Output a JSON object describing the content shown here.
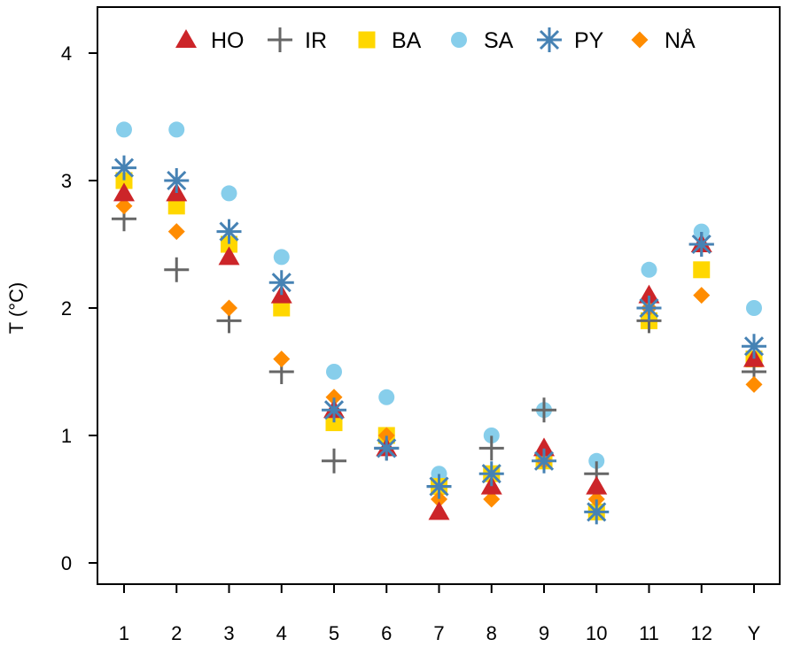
{
  "chart_data": {
    "type": "scatter",
    "title": "",
    "xlabel": "",
    "ylabel": "T (°C)",
    "categories": [
      "1",
      "2",
      "3",
      "4",
      "5",
      "6",
      "7",
      "8",
      "9",
      "10",
      "11",
      "12",
      "Y"
    ],
    "ylim": [
      -0.15,
      4.3
    ],
    "yticks": [
      "0",
      "1",
      "2",
      "3",
      "4"
    ],
    "grid": false,
    "legend_position": "top",
    "series": [
      {
        "name": "HO",
        "marker": "triangle",
        "color": "#CC2529",
        "values": [
          2.9,
          2.9,
          2.4,
          2.1,
          1.2,
          0.9,
          0.4,
          0.6,
          0.9,
          0.6,
          2.1,
          2.5,
          1.6
        ]
      },
      {
        "name": "IR",
        "marker": "plus",
        "color": "#666666",
        "values": [
          2.7,
          2.3,
          1.9,
          1.5,
          0.8,
          0.9,
          0.6,
          0.9,
          1.2,
          0.7,
          1.9,
          2.5,
          1.5
        ]
      },
      {
        "name": "BA",
        "marker": "square",
        "color": "#FFD700",
        "values": [
          3.0,
          2.8,
          2.5,
          2.0,
          1.1,
          1.0,
          0.6,
          0.7,
          0.8,
          0.4,
          1.9,
          2.3,
          1.6
        ]
      },
      {
        "name": "SA",
        "marker": "circle",
        "color": "#87CEEB",
        "values": [
          3.4,
          3.4,
          2.9,
          2.4,
          1.5,
          1.3,
          0.7,
          1.0,
          1.2,
          0.8,
          2.3,
          2.6,
          2.0
        ]
      },
      {
        "name": "PY",
        "marker": "asterisk",
        "color": "#4682B4",
        "values": [
          3.1,
          3.0,
          2.6,
          2.2,
          1.2,
          0.9,
          0.6,
          0.7,
          0.8,
          0.4,
          2.0,
          2.5,
          1.7
        ]
      },
      {
        "name": "NÅ",
        "marker": "diamond",
        "color": "#FF8C00",
        "values": [
          2.8,
          2.6,
          2.0,
          1.6,
          1.3,
          1.0,
          0.5,
          0.5,
          0.8,
          0.5,
          2.0,
          2.1,
          1.4
        ]
      }
    ],
    "plot_order": [
      "SA",
      "BA",
      "IR",
      "NÅ",
      "HO",
      "PY"
    ]
  }
}
